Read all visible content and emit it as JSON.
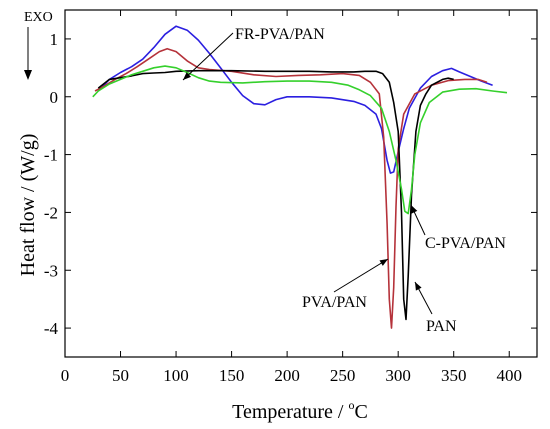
{
  "chart_data": {
    "type": "line",
    "title": "",
    "xlabel": "Temperature / °C",
    "xlabel_parts": {
      "text": "Temperature / ",
      "sup": "o",
      "unit": "C"
    },
    "ylabel": "Heat flow / (W/g)",
    "xlim": [
      0,
      425
    ],
    "ylim": [
      -4.5,
      1.5
    ],
    "x_ticks": [
      0,
      50,
      100,
      150,
      200,
      250,
      300,
      350,
      400
    ],
    "y_ticks": [
      1,
      0,
      -1,
      -2,
      -3,
      -4
    ],
    "exo_label": "EXO",
    "grid": false,
    "series": [
      {
        "name": "FR-PVA/PAN",
        "color": "#2b1fe0",
        "points": [
          [
            30,
            0.1
          ],
          [
            40,
            0.3
          ],
          [
            50,
            0.42
          ],
          [
            60,
            0.52
          ],
          [
            70,
            0.65
          ],
          [
            80,
            0.85
          ],
          [
            90,
            1.08
          ],
          [
            100,
            1.22
          ],
          [
            110,
            1.15
          ],
          [
            120,
            0.98
          ],
          [
            130,
            0.75
          ],
          [
            140,
            0.5
          ],
          [
            150,
            0.25
          ],
          [
            160,
            0.02
          ],
          [
            170,
            -0.12
          ],
          [
            180,
            -0.14
          ],
          [
            190,
            -0.05
          ],
          [
            200,
            0.0
          ],
          [
            220,
            0.0
          ],
          [
            240,
            -0.02
          ],
          [
            260,
            -0.08
          ],
          [
            270,
            -0.15
          ],
          [
            280,
            -0.3
          ],
          [
            285,
            -0.55
          ],
          [
            290,
            -1.1
          ],
          [
            293,
            -1.32
          ],
          [
            296,
            -1.3
          ],
          [
            300,
            -0.95
          ],
          [
            305,
            -0.55
          ],
          [
            310,
            -0.2
          ],
          [
            320,
            0.15
          ],
          [
            330,
            0.35
          ],
          [
            340,
            0.45
          ],
          [
            348,
            0.49
          ],
          [
            355,
            0.43
          ],
          [
            365,
            0.35
          ],
          [
            375,
            0.27
          ],
          [
            385,
            0.2
          ]
        ]
      },
      {
        "name": "PVA/PAN",
        "color": "#b5323a",
        "points": [
          [
            27,
            0.1
          ],
          [
            35,
            0.18
          ],
          [
            45,
            0.3
          ],
          [
            55,
            0.4
          ],
          [
            65,
            0.52
          ],
          [
            75,
            0.65
          ],
          [
            85,
            0.78
          ],
          [
            92,
            0.83
          ],
          [
            100,
            0.78
          ],
          [
            110,
            0.62
          ],
          [
            120,
            0.5
          ],
          [
            130,
            0.47
          ],
          [
            150,
            0.44
          ],
          [
            170,
            0.38
          ],
          [
            190,
            0.35
          ],
          [
            210,
            0.37
          ],
          [
            230,
            0.38
          ],
          [
            250,
            0.4
          ],
          [
            265,
            0.37
          ],
          [
            275,
            0.25
          ],
          [
            283,
            0.05
          ],
          [
            287,
            -0.7
          ],
          [
            290,
            -2.2
          ],
          [
            292,
            -3.5
          ],
          [
            294,
            -4.0
          ],
          [
            296,
            -3.3
          ],
          [
            298,
            -1.9
          ],
          [
            300,
            -0.9
          ],
          [
            305,
            -0.3
          ],
          [
            315,
            0.05
          ],
          [
            330,
            0.2
          ],
          [
            345,
            0.28
          ],
          [
            360,
            0.3
          ],
          [
            372,
            0.3
          ],
          [
            380,
            0.25
          ]
        ]
      },
      {
        "name": "PAN",
        "color": "#000000",
        "points": [
          [
            30,
            0.15
          ],
          [
            40,
            0.3
          ],
          [
            50,
            0.33
          ],
          [
            60,
            0.36
          ],
          [
            70,
            0.4
          ],
          [
            80,
            0.41
          ],
          [
            90,
            0.42
          ],
          [
            100,
            0.44
          ],
          [
            120,
            0.45
          ],
          [
            150,
            0.45
          ],
          [
            180,
            0.44
          ],
          [
            200,
            0.44
          ],
          [
            220,
            0.44
          ],
          [
            240,
            0.43
          ],
          [
            250,
            0.43
          ],
          [
            260,
            0.43
          ],
          [
            270,
            0.44
          ],
          [
            280,
            0.44
          ],
          [
            286,
            0.4
          ],
          [
            292,
            0.25
          ],
          [
            296,
            -0.1
          ],
          [
            300,
            -0.6
          ],
          [
            303,
            -2.0
          ],
          [
            305,
            -3.5
          ],
          [
            307,
            -3.85
          ],
          [
            309,
            -3.1
          ],
          [
            312,
            -1.7
          ],
          [
            316,
            -0.6
          ],
          [
            320,
            -0.15
          ],
          [
            325,
            0.05
          ],
          [
            330,
            0.2
          ],
          [
            340,
            0.3
          ],
          [
            345,
            0.32
          ],
          [
            350,
            0.3
          ]
        ]
      },
      {
        "name": "C-PVA/PAN",
        "color": "#35d02c",
        "points": [
          [
            25,
            0.0
          ],
          [
            30,
            0.1
          ],
          [
            40,
            0.22
          ],
          [
            50,
            0.3
          ],
          [
            60,
            0.38
          ],
          [
            70,
            0.44
          ],
          [
            80,
            0.5
          ],
          [
            90,
            0.53
          ],
          [
            100,
            0.5
          ],
          [
            110,
            0.42
          ],
          [
            120,
            0.33
          ],
          [
            130,
            0.27
          ],
          [
            140,
            0.25
          ],
          [
            160,
            0.24
          ],
          [
            180,
            0.26
          ],
          [
            200,
            0.27
          ],
          [
            220,
            0.27
          ],
          [
            240,
            0.25
          ],
          [
            255,
            0.2
          ],
          [
            265,
            0.12
          ],
          [
            275,
            0.02
          ],
          [
            285,
            -0.2
          ],
          [
            292,
            -0.6
          ],
          [
            298,
            -1.1
          ],
          [
            303,
            -1.6
          ],
          [
            306,
            -1.98
          ],
          [
            309,
            -2.02
          ],
          [
            312,
            -1.6
          ],
          [
            315,
            -1.0
          ],
          [
            320,
            -0.45
          ],
          [
            328,
            -0.1
          ],
          [
            340,
            0.08
          ],
          [
            355,
            0.13
          ],
          [
            370,
            0.14
          ],
          [
            385,
            0.1
          ],
          [
            398,
            0.07
          ]
        ]
      }
    ],
    "annotations": [
      {
        "text": "FR-PVA/PAN",
        "series": "FR-PVA/PAN"
      },
      {
        "text": "C-PVA/PAN",
        "series": "C-PVA/PAN"
      },
      {
        "text": "PVA/PAN",
        "series": "PVA/PAN"
      },
      {
        "text": "PAN",
        "series": "PAN"
      }
    ]
  }
}
